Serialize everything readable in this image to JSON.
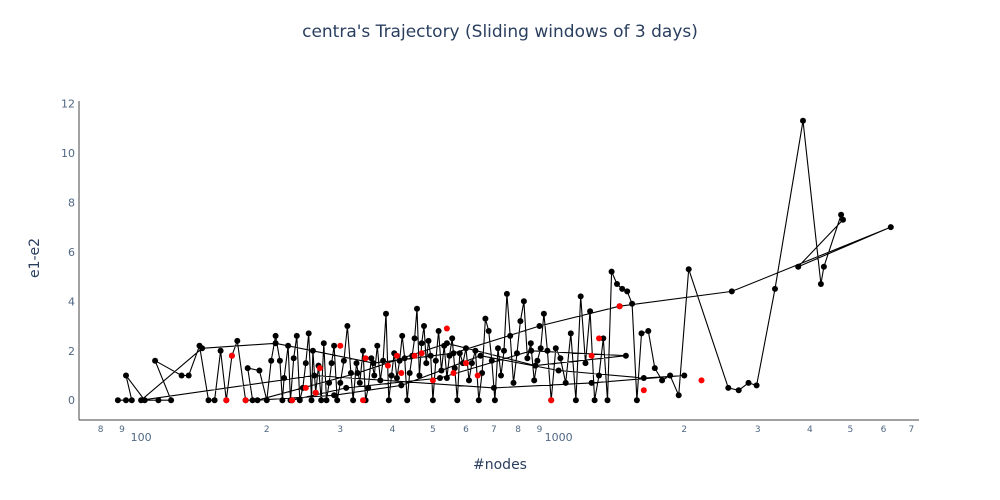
{
  "chart_data": {
    "type": "line",
    "title": "centra's Trajectory (Sliding windows of 3 days)",
    "xlabel": "#nodes",
    "ylabel": "e1-e2",
    "x_scale": "log",
    "xlim": [
      71,
      7300
    ],
    "ylim": [
      -0.8,
      12.1
    ],
    "grid": false,
    "legend": "none",
    "x_tick_labels": [
      {
        "value": 80,
        "label": "8"
      },
      {
        "value": 90,
        "label": "9"
      },
      {
        "value": 100,
        "label": "100",
        "major": true
      },
      {
        "value": 200,
        "label": "2"
      },
      {
        "value": 300,
        "label": "3"
      },
      {
        "value": 400,
        "label": "4"
      },
      {
        "value": 500,
        "label": "5"
      },
      {
        "value": 600,
        "label": "6"
      },
      {
        "value": 700,
        "label": "7"
      },
      {
        "value": 800,
        "label": "8"
      },
      {
        "value": 900,
        "label": "9"
      },
      {
        "value": 1000,
        "label": "1000",
        "major": true
      },
      {
        "value": 2000,
        "label": "2"
      },
      {
        "value": 3000,
        "label": "3"
      },
      {
        "value": 4000,
        "label": "4"
      },
      {
        "value": 5000,
        "label": "5"
      },
      {
        "value": 6000,
        "label": "6"
      },
      {
        "value": 7000,
        "label": "7"
      }
    ],
    "y_ticks": [
      0,
      2,
      4,
      6,
      8,
      10,
      12
    ],
    "colors": {
      "line": "#000000",
      "point": "#000000",
      "highlight": "#ff0000"
    },
    "series": [
      {
        "values": [
          [
            88,
            0
          ],
          [
            92,
            0
          ],
          [
            95,
            0
          ],
          [
            92,
            1.0
          ],
          [
            102,
            0
          ],
          [
            110,
            0
          ],
          [
            118,
            0
          ],
          [
            108,
            1.6
          ],
          [
            125,
            1.0
          ],
          [
            130,
            1.0
          ],
          [
            138,
            2.2
          ],
          [
            145,
            0
          ],
          [
            150,
            0
          ],
          [
            155,
            2.0
          ],
          [
            160,
            0
          ],
          [
            165,
            1.8
          ],
          [
            170,
            2.4
          ],
          [
            178,
            0
          ],
          [
            185,
            0
          ],
          [
            180,
            1.3
          ],
          [
            192,
            1.2
          ],
          [
            200,
            0
          ],
          [
            205,
            1.6
          ],
          [
            210,
            2.6
          ],
          [
            215,
            1.6
          ],
          [
            218,
            0
          ],
          [
            220,
            0.9
          ],
          [
            225,
            2.2
          ],
          [
            228,
            0
          ],
          [
            232,
            1.7
          ],
          [
            236,
            2.6
          ],
          [
            240,
            0
          ],
          [
            244,
            0.5
          ],
          [
            248,
            1.5
          ],
          [
            252,
            2.7
          ],
          [
            256,
            0
          ],
          [
            258,
            2.0
          ],
          [
            262,
            0.3
          ],
          [
            266,
            1.4
          ],
          [
            270,
            0
          ],
          [
            274,
            2.3
          ],
          [
            278,
            0
          ],
          [
            282,
            0.7
          ],
          [
            286,
            1.5
          ],
          [
            290,
            2.2
          ],
          [
            295,
            0
          ],
          [
            300,
            0.7
          ],
          [
            306,
            1.6
          ],
          [
            312,
            3.0
          ],
          [
            318,
            1.1
          ],
          [
            322,
            0
          ],
          [
            328,
            1.5
          ],
          [
            334,
            0.7
          ],
          [
            340,
            2.0
          ],
          [
            345,
            0
          ],
          [
            350,
            0.5
          ],
          [
            356,
            1.7
          ],
          [
            362,
            1.0
          ],
          [
            368,
            2.2
          ],
          [
            374,
            0.8
          ],
          [
            380,
            1.6
          ],
          [
            386,
            3.5
          ],
          [
            392,
            0
          ],
          [
            398,
            1.0
          ],
          [
            404,
            1.9
          ],
          [
            410,
            0.9
          ],
          [
            416,
            1.6
          ],
          [
            422,
            2.6
          ],
          [
            428,
            1.7
          ],
          [
            434,
            0
          ],
          [
            440,
            1.1
          ],
          [
            446,
            1.8
          ],
          [
            452,
            2.5
          ],
          [
            458,
            3.7
          ],
          [
            464,
            1.0
          ],
          [
            470,
            2.3
          ],
          [
            476,
            3.0
          ],
          [
            482,
            1.5
          ],
          [
            488,
            2.4
          ],
          [
            494,
            1.8
          ],
          [
            500,
            0
          ],
          [
            508,
            1.6
          ],
          [
            516,
            2.8
          ],
          [
            524,
            1.2
          ],
          [
            532,
            2.2
          ],
          [
            540,
            0.9
          ],
          [
            548,
            1.8
          ],
          [
            556,
            2.5
          ],
          [
            564,
            1.3
          ],
          [
            572,
            0
          ],
          [
            580,
            1.9
          ],
          [
            590,
            1.5
          ],
          [
            600,
            2.1
          ],
          [
            610,
            0.8
          ],
          [
            620,
            1.5
          ],
          [
            632,
            2.0
          ],
          [
            644,
            0
          ],
          [
            656,
            1.1
          ],
          [
            668,
            3.3
          ],
          [
            680,
            2.8
          ],
          [
            692,
            1.6
          ],
          [
            704,
            0
          ],
          [
            716,
            2.1
          ],
          [
            728,
            1.0
          ],
          [
            740,
            2.0
          ],
          [
            752,
            4.3
          ],
          [
            766,
            2.6
          ],
          [
            780,
            0.7
          ],
          [
            795,
            1.9
          ],
          [
            810,
            3.2
          ],
          [
            826,
            4.0
          ],
          [
            842,
            1.7
          ],
          [
            858,
            2.3
          ],
          [
            874,
            0.8
          ],
          [
            890,
            1.6
          ],
          [
            906,
            2.1
          ],
          [
            922,
            3.5
          ],
          [
            940,
            2.0
          ],
          [
            960,
            0
          ],
          [
            985,
            2.1
          ],
          [
            1010,
            1.7
          ],
          [
            1040,
            0.7
          ],
          [
            1070,
            2.7
          ],
          [
            1100,
            0
          ],
          [
            1130,
            4.2
          ],
          [
            1160,
            1.5
          ],
          [
            1190,
            3.6
          ],
          [
            1220,
            0
          ],
          [
            1250,
            1.0
          ],
          [
            1280,
            2.5
          ],
          [
            1310,
            0
          ],
          [
            1340,
            5.2
          ],
          [
            1380,
            4.7
          ],
          [
            1420,
            4.5
          ],
          [
            1460,
            4.4
          ],
          [
            1500,
            3.9
          ],
          [
            1540,
            0
          ],
          [
            1580,
            2.7
          ],
          [
            1640,
            2.8
          ],
          [
            1700,
            1.3
          ],
          [
            1770,
            0.8
          ],
          [
            1850,
            1.0
          ],
          [
            1940,
            0.2
          ],
          [
            2050,
            5.3
          ],
          [
            2550,
            0.5
          ],
          [
            2700,
            0.4
          ],
          [
            2850,
            0.7
          ],
          [
            2980,
            0.6
          ],
          [
            3300,
            4.5
          ],
          [
            3850,
            11.3
          ],
          [
            4250,
            4.7
          ],
          [
            4320,
            5.4
          ],
          [
            4750,
            7.5
          ],
          [
            4800,
            7.3
          ],
          [
            3750,
            5.4
          ],
          [
            6250,
            7.0
          ],
          [
            2600,
            4.4
          ],
          [
            1400,
            3.8
          ],
          [
            900,
            3.0
          ],
          [
            560,
            1.9
          ],
          [
            360,
            1.5
          ],
          [
            210,
            2.3
          ],
          [
            140,
            2.1
          ],
          [
            100,
            0
          ],
          [
            260,
            1.0
          ],
          [
            700,
            0.5
          ],
          [
            1200,
            0.7
          ],
          [
            2000,
            1.0
          ],
          [
            1600,
            0.9
          ],
          [
            1000,
            1.2
          ],
          [
            650,
            1.8
          ],
          [
            420,
            0.6
          ],
          [
            290,
            0.2
          ],
          [
            190,
            0
          ],
          [
            330,
            1.1
          ],
          [
            540,
            2.3
          ],
          [
            880,
            1.4
          ],
          [
            1450,
            1.8
          ],
          [
            860,
            2.0
          ],
          [
            520,
            0.9
          ],
          [
            310,
            0.5
          ],
          [
            230,
            0
          ]
        ]
      }
    ],
    "highlighted_points": [
      [
        160,
        0
      ],
      [
        165,
        1.8
      ],
      [
        178,
        0
      ],
      [
        230,
        0
      ],
      [
        248,
        0.5
      ],
      [
        262,
        0.3
      ],
      [
        268,
        1.3
      ],
      [
        300,
        2.2
      ],
      [
        340,
        0
      ],
      [
        345,
        1.7
      ],
      [
        390,
        1.4
      ],
      [
        410,
        1.8
      ],
      [
        420,
        1.1
      ],
      [
        452,
        1.8
      ],
      [
        470,
        1.9
      ],
      [
        500,
        0.8
      ],
      [
        540,
        2.9
      ],
      [
        560,
        1.1
      ],
      [
        600,
        1.5
      ],
      [
        640,
        1.0
      ],
      [
        960,
        0
      ],
      [
        1200,
        1.8
      ],
      [
        1250,
        2.5
      ],
      [
        1400,
        3.8
      ],
      [
        1600,
        0.4
      ],
      [
        2200,
        0.8
      ]
    ]
  }
}
